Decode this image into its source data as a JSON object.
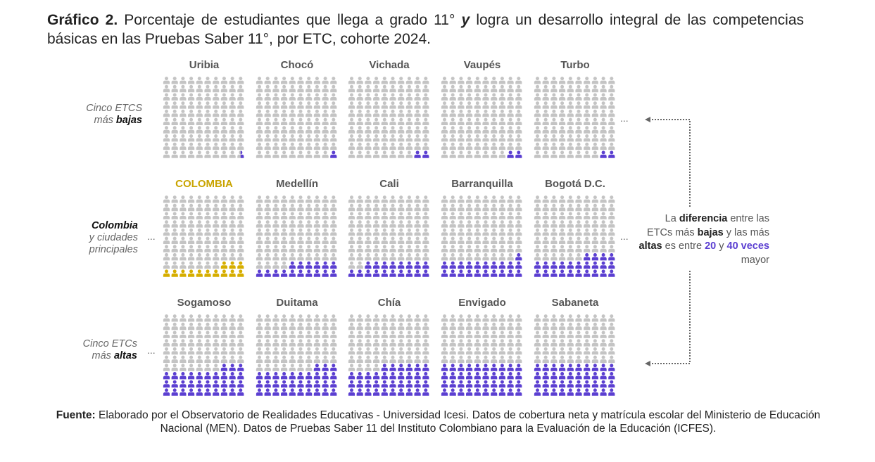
{
  "title": {
    "prefix": "Gráfico 2.",
    "part1": " Porcentaje de estudiantes que llega a grado 11° ",
    "emph": "y",
    "part2": " logra un desarrollo integral de las competencias básicas en las Pruebas Saber 11°, por ETC, cohorte 2024."
  },
  "row_labels": [
    {
      "line1": "Cinco ETCS",
      "line2a": "más ",
      "line2b": "bajas"
    },
    {
      "line1": "Colombia",
      "line2": "y ciudades",
      "line3": "principales"
    },
    {
      "line1": "Cinco ETCs",
      "line2a": "más ",
      "line2b": "altas"
    }
  ],
  "ellipsis": "...",
  "annotation": {
    "t1": "La ",
    "t2": "diferencia",
    "t3": " entre las ETCs más ",
    "t4": "bajas",
    "t5": " y las más ",
    "t6": "altas",
    "t7": " es entre ",
    "t8": "20",
    "t9": " y ",
    "t10": "40 veces",
    "t11": " mayor"
  },
  "source": {
    "label": "Fuente:",
    "text": " Elaborado por el Observatorio de Realidades Educativas - Universidad Icesi. Datos de cobertura neta y matrícula escolar del Ministerio de Educación Nacional (MEN). Datos de Pruebas Saber 11 del Instituto Colombiano para la Evaluación de la Educación (ICFES)."
  },
  "colors": {
    "empty": "#c4c4c4",
    "filled": "#5b3fd1",
    "colombia": "#d6ae00",
    "colombia_title": "#c9a400"
  },
  "chart_data": {
    "type": "pictogram",
    "unit": "percent",
    "icons_per_grid": 100,
    "rows": [
      {
        "group": "Cinco ETCS más bajas",
        "items": [
          {
            "name": "Uribia",
            "value": 0.5
          },
          {
            "name": "Chocó",
            "value": 1
          },
          {
            "name": "Vichada",
            "value": 2
          },
          {
            "name": "Vaupés",
            "value": 2
          },
          {
            "name": "Turbo",
            "value": 2
          }
        ]
      },
      {
        "group": "Colombia y ciudades principales",
        "items": [
          {
            "name": "COLOMBIA",
            "value": 13,
            "highlight": true
          },
          {
            "name": "Medellín",
            "value": 16
          },
          {
            "name": "Cali",
            "value": 18
          },
          {
            "name": "Barranquilla",
            "value": 21
          },
          {
            "name": "Bogotá D.C.",
            "value": 24
          }
        ]
      },
      {
        "group": "Cinco ETCs más altas",
        "items": [
          {
            "name": "Sogamoso",
            "value": 33
          },
          {
            "name": "Duitama",
            "value": 33
          },
          {
            "name": "Chía",
            "value": 36
          },
          {
            "name": "Envigado",
            "value": 40
          },
          {
            "name": "Sabaneta",
            "value": 40
          }
        ]
      }
    ]
  }
}
